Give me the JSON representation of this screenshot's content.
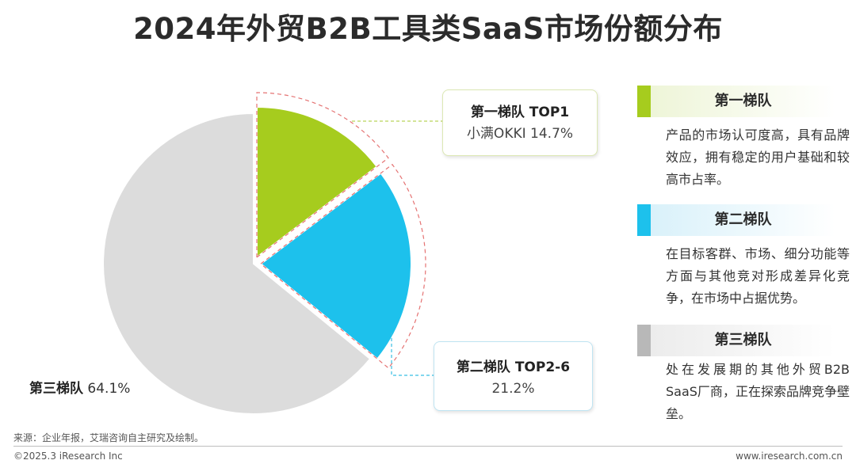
{
  "title": "2024年外贸B2B工具类SaaS市场份额分布",
  "chart_data": {
    "type": "pie",
    "slices": [
      {
        "tier": "第一梯队",
        "tag": "TOP1",
        "name": "小满OKKI",
        "value": 14.7,
        "color": "#a6cc1e"
      },
      {
        "tier": "第二梯队",
        "tag": "TOP2-6",
        "name": "",
        "value": 21.2,
        "color": "#1dc1ec"
      },
      {
        "tier": "第三梯队",
        "tag": "",
        "name": "",
        "value": 64.1,
        "color": "#dcdcdc"
      }
    ],
    "unit": "%",
    "exploded": [
      "第一梯队",
      "第二梯队"
    ]
  },
  "callouts": {
    "tier1": {
      "head": "第一梯队 TOP1",
      "value": "小满OKKI 14.7%"
    },
    "tier2": {
      "head": "第二梯队 TOP2-6",
      "value": "21.2%"
    },
    "tier3": {
      "name": "第三梯队",
      "value": "64.1%"
    }
  },
  "cards": [
    {
      "title": "第一梯队",
      "accent": "#a6cc1e",
      "desc": "产品的市场认可度高，具有品牌效应，拥有稳定的用户基础和较高市占率。"
    },
    {
      "title": "第二梯队",
      "accent": "#1dc1ec",
      "desc": "在目标客群、市场、细分功能等方面与其他竞对形成差异化竞争，在市场中占据优势。"
    },
    {
      "title": "第三梯队",
      "accent": "#b8b8b8",
      "desc": "处在发展期的其他外贸B2B SaaS厂商，正在探索品牌竞争壁垒。"
    }
  ],
  "source": "来源：企业年报，艾瑞咨询自主研究及绘制。",
  "copyright": "©2025.3 iResearch Inc",
  "site": "www.iresearch.com.cn"
}
